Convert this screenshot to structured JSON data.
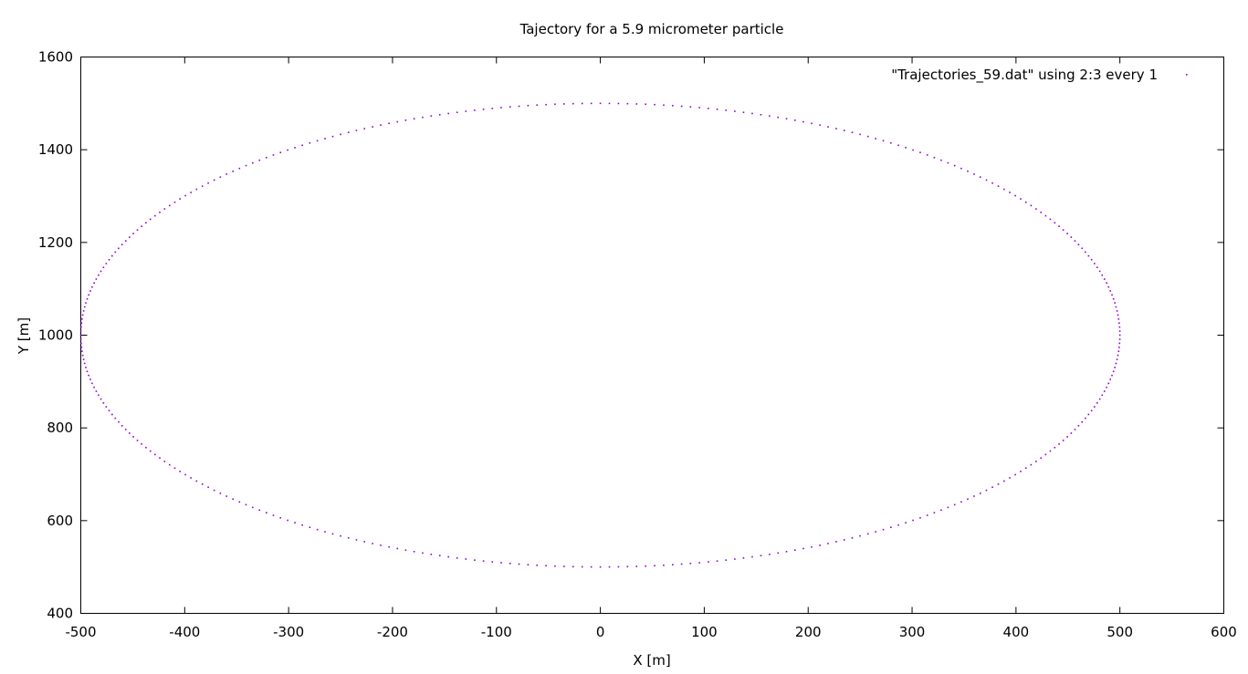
{
  "chart_data": {
    "type": "scatter",
    "title": "Tajectory for a 5.9 micrometer particle",
    "xlabel": "X [m]",
    "ylabel": "Y [m]",
    "xlim": [
      -500,
      600
    ],
    "ylim": [
      400,
      1600
    ],
    "xticks": [
      "-500",
      "-400",
      "-300",
      "-200",
      "-100",
      "0",
      "100",
      "200",
      "300",
      "400",
      "500",
      "600"
    ],
    "yticks": [
      "400",
      "600",
      "800",
      "1000",
      "1200",
      "1400",
      "1600"
    ],
    "legend_position": "top-right",
    "grid": false,
    "series": [
      {
        "name": "\"Trajectories_59.dat\" using 2:3 every 1",
        "color": "#9400d3",
        "marker": "dot",
        "shape": "ellipse",
        "center": [
          0,
          1000
        ],
        "semi_axes": [
          500,
          500
        ],
        "point_count": 360
      }
    ]
  }
}
